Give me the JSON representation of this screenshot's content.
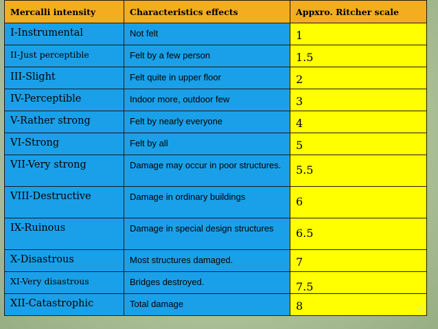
{
  "table": {
    "headers": [
      "Mercalli intensity",
      "Characteristics effects",
      "Appxro. Ritcher scale"
    ],
    "rows": [
      {
        "intensity": "I-Instrumental",
        "effect": "Not felt",
        "scale": "1"
      },
      {
        "intensity": "II-Just perceptible",
        "effect": "Felt by a few person",
        "scale": "1.5"
      },
      {
        "intensity": "III-Slight",
        "effect": "Felt quite in upper floor",
        "scale": "2"
      },
      {
        "intensity": "IV-Perceptible",
        "effect": "Indoor more, outdoor few",
        "scale": "3"
      },
      {
        "intensity": "V-Rather strong",
        "effect": "Felt by nearly everyone",
        "scale": "4"
      },
      {
        "intensity": "VI-Strong",
        "effect": "Felt by all",
        "scale": "5"
      },
      {
        "intensity": "VII-Very strong",
        "effect": "Damage may occur in poor structures.",
        "scale": "5.5"
      },
      {
        "intensity": "VIII-Destructive",
        "effect": "Damage in ordinary buildings",
        "scale": "6"
      },
      {
        "intensity": "IX-Ruinous",
        "effect": "Damage in special design structures",
        "scale": "6.5"
      },
      {
        "intensity": "X-Disastrous",
        "effect": "Most structures damaged.",
        "scale": "7"
      },
      {
        "intensity": "XI-Very disastrous",
        "effect": "Bridges destroyed.",
        "scale": "7.5"
      },
      {
        "intensity": "XII-Catastrophic",
        "effect": "Total damage",
        "scale": "8"
      }
    ]
  },
  "slide": {
    "page_number": "6"
  },
  "colors": {
    "header": "#f3ad1f",
    "cell_blue": "#1aa0e8",
    "cell_yellow": "#ffff00"
  }
}
